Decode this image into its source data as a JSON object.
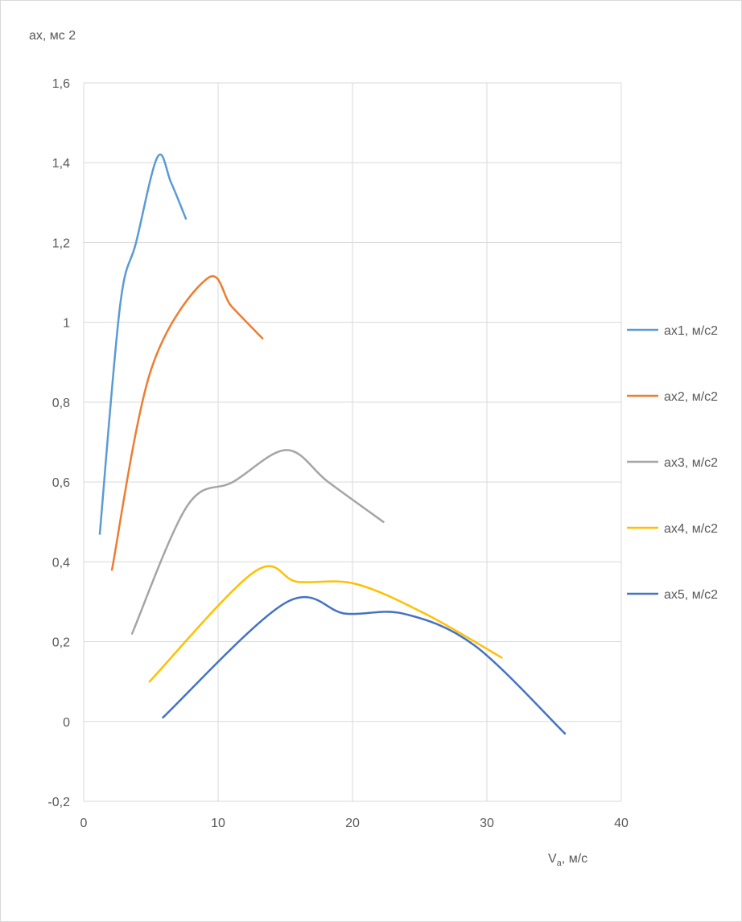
{
  "chart_data": {
    "type": "line",
    "smooth": true,
    "ylabel": "ax, мс 2",
    "xlabel_main": "V",
    "xlabel_sub": "a",
    "xlabel_tail": ", м/с",
    "xlim": [
      0,
      40
    ],
    "ylim": [
      -0.2,
      1.6
    ],
    "xticks": [
      0,
      10,
      20,
      30,
      40
    ],
    "yticks": [
      -0.2,
      0,
      0.2,
      0.4,
      0.6,
      0.8,
      1,
      1.2,
      1.4,
      1.6
    ],
    "xtick_labels": [
      "0",
      "10",
      "20",
      "30",
      "40"
    ],
    "ytick_labels": [
      "-0,2",
      "0",
      "0,2",
      "0,4",
      "0,6",
      "0,8",
      "1",
      "1,2",
      "1,4",
      "1,6"
    ],
    "grid": true,
    "legend_position": "right",
    "series": [
      {
        "name": "ax1, м/с2",
        "color": "#5B9BD5",
        "points": [
          [
            1.2,
            0.47
          ],
          [
            2.7,
            1.04
          ],
          [
            3.9,
            1.2
          ],
          [
            5.5,
            1.415
          ],
          [
            6.5,
            1.35
          ],
          [
            7.6,
            1.26
          ]
        ]
      },
      {
        "name": "ax2, м/с2",
        "color": "#ED7D31",
        "points": [
          [
            2.1,
            0.38
          ],
          [
            5.0,
            0.88
          ],
          [
            9.2,
            1.11
          ],
          [
            11.0,
            1.04
          ],
          [
            13.3,
            0.96
          ]
        ]
      },
      {
        "name": "ax3, м/с2",
        "color": "#A5A5A5",
        "points": [
          [
            3.6,
            0.22
          ],
          [
            7.7,
            0.54
          ],
          [
            11.1,
            0.6
          ],
          [
            15.1,
            0.68
          ],
          [
            18.2,
            0.6
          ],
          [
            22.3,
            0.5
          ]
        ]
      },
      {
        "name": "ax4, м/с2",
        "color": "#FFC000",
        "points": [
          [
            4.9,
            0.1
          ],
          [
            12.7,
            0.375
          ],
          [
            15.9,
            0.35
          ],
          [
            20.2,
            0.345
          ],
          [
            25.4,
            0.27
          ],
          [
            31.1,
            0.16
          ]
        ]
      },
      {
        "name": "ax5, м/с2",
        "color": "#4472C4",
        "points": [
          [
            5.9,
            0.01
          ],
          [
            15.0,
            0.297
          ],
          [
            19.5,
            0.27
          ],
          [
            23.8,
            0.27
          ],
          [
            29.1,
            0.19
          ],
          [
            35.8,
            -0.03
          ]
        ]
      }
    ]
  }
}
